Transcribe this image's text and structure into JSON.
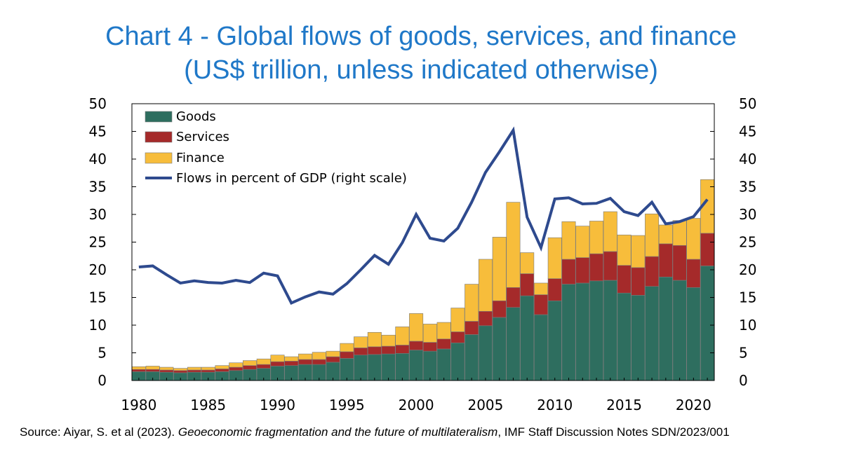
{
  "title_line1": "Chart 4 - Global flows of goods, services, and finance",
  "title_line2": "(US$ trillion, unless indicated otherwise)",
  "source": {
    "prefix": "Source: Aiyar, S. et al (2023). ",
    "italic": "Geoeconomic fragmentation and the future of multilateralism",
    "suffix": ", IMF Staff Discussion Notes SDN/2023/001"
  },
  "colors": {
    "goods": "#2e6e5f",
    "services": "#a52a2a",
    "finance": "#f7bd3b",
    "line": "#2e4a8e",
    "bar_stroke": "#7a7a7a"
  },
  "chart_data": {
    "type": "bar",
    "stacked": true,
    "title": "Chart 4 - Global flows of goods, services, and finance (US$ trillion, unless indicated otherwise)",
    "xlabel": "",
    "ylabel": "",
    "ylim": [
      0,
      50
    ],
    "y2lim": [
      0,
      50
    ],
    "yticks": [
      "0",
      "5",
      "10",
      "15",
      "20",
      "25",
      "30",
      "35",
      "40",
      "45",
      "50"
    ],
    "xtick_labels": [
      "1980",
      "1985",
      "1990",
      "1995",
      "2000",
      "2005",
      "2010",
      "2015",
      "2020"
    ],
    "legend_position": "top-left",
    "categories": [
      1980,
      1981,
      1982,
      1983,
      1984,
      1985,
      1986,
      1987,
      1988,
      1989,
      1990,
      1991,
      1992,
      1993,
      1994,
      1995,
      1996,
      1997,
      1998,
      1999,
      2000,
      2001,
      2002,
      2003,
      2004,
      2005,
      2006,
      2007,
      2008,
      2009,
      2010,
      2011,
      2012,
      2013,
      2014,
      2015,
      2016,
      2017,
      2018,
      2019,
      2020,
      2021
    ],
    "series": [
      {
        "name": "Goods",
        "values": [
          1.6,
          1.6,
          1.5,
          1.4,
          1.5,
          1.5,
          1.6,
          1.8,
          2.0,
          2.2,
          2.6,
          2.7,
          2.9,
          2.9,
          3.3,
          4.0,
          4.6,
          4.7,
          4.8,
          4.9,
          5.5,
          5.3,
          5.7,
          6.8,
          8.3,
          9.9,
          11.4,
          13.2,
          15.3,
          11.9,
          14.4,
          17.4,
          17.6,
          18.0,
          18.1,
          15.8,
          15.4,
          17.0,
          18.7,
          18.1,
          16.8,
          20.7
        ]
      },
      {
        "name": "Services",
        "values": [
          0.4,
          0.4,
          0.4,
          0.4,
          0.4,
          0.4,
          0.5,
          0.6,
          0.7,
          0.7,
          0.8,
          0.8,
          0.9,
          0.9,
          1.0,
          1.2,
          1.3,
          1.4,
          1.4,
          1.5,
          1.6,
          1.6,
          1.8,
          2.0,
          2.4,
          2.6,
          3.0,
          3.6,
          4.0,
          3.6,
          4.0,
          4.5,
          4.6,
          4.9,
          5.2,
          5.0,
          5.0,
          5.4,
          6.0,
          6.3,
          5.1,
          5.9
        ]
      },
      {
        "name": "Finance",
        "values": [
          0.5,
          0.6,
          0.5,
          0.4,
          0.5,
          0.5,
          0.6,
          0.8,
          0.9,
          1.0,
          1.2,
          0.8,
          1.0,
          1.3,
          1.0,
          1.5,
          2.0,
          2.6,
          2.0,
          3.3,
          5.0,
          3.3,
          3.0,
          4.3,
          6.7,
          9.4,
          11.5,
          15.4,
          3.8,
          2.1,
          7.4,
          6.8,
          5.7,
          5.9,
          7.2,
          5.5,
          5.8,
          7.7,
          3.4,
          4.5,
          7.4,
          9.7
        ]
      }
    ],
    "line": {
      "name": "Flows in percent of GDP (right scale)",
      "axis": "right",
      "values": [
        20.5,
        20.7,
        19.1,
        17.6,
        18.0,
        17.7,
        17.6,
        18.1,
        17.7,
        19.4,
        18.9,
        14.0,
        15.1,
        16.0,
        15.6,
        17.5,
        20.0,
        22.6,
        21.0,
        24.9,
        30.0,
        25.7,
        25.2,
        27.5,
        32.2,
        37.6,
        41.3,
        45.2,
        29.5,
        24.0,
        32.8,
        33.0,
        31.9,
        32.0,
        32.9,
        30.5,
        29.8,
        32.2,
        28.3,
        28.7,
        29.6,
        32.7
      ]
    }
  }
}
